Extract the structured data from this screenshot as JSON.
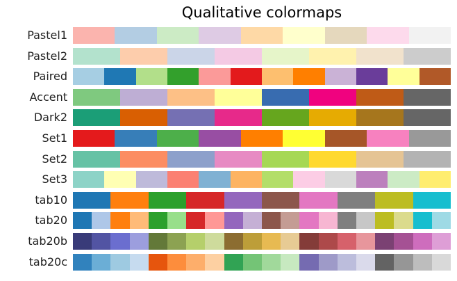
{
  "chart_data": {
    "type": "heatmap",
    "title": "Qualitative colormaps",
    "grid": false,
    "colormaps": [
      {
        "name": "Pastel1",
        "colors": [
          "#fbb4ae",
          "#b3cde3",
          "#ccebc5",
          "#decbe4",
          "#fed9a6",
          "#ffffcc",
          "#e5d8bd",
          "#fddaec",
          "#f2f2f2"
        ]
      },
      {
        "name": "Pastel2",
        "colors": [
          "#b3e2cd",
          "#fdcdac",
          "#cbd5e8",
          "#f4cae4",
          "#e6f5c9",
          "#fff2ae",
          "#f1e2cc",
          "#cccccc"
        ]
      },
      {
        "name": "Paired",
        "colors": [
          "#a6cee3",
          "#1f78b4",
          "#b2df8a",
          "#33a02c",
          "#fb9a99",
          "#e31a1c",
          "#fdbf6f",
          "#ff7f00",
          "#cab2d6",
          "#6a3d9a",
          "#ffff99",
          "#b15928"
        ]
      },
      {
        "name": "Accent",
        "colors": [
          "#7fc97f",
          "#beaed4",
          "#fdc086",
          "#ffff99",
          "#386cb0",
          "#f0027f",
          "#bf5b17",
          "#666666"
        ]
      },
      {
        "name": "Dark2",
        "colors": [
          "#1b9e77",
          "#d95f02",
          "#7570b3",
          "#e7298a",
          "#66a61e",
          "#e6ab02",
          "#a6761d",
          "#666666"
        ]
      },
      {
        "name": "Set1",
        "colors": [
          "#e41a1c",
          "#377eb8",
          "#4daf4a",
          "#984ea3",
          "#ff7f00",
          "#ffff33",
          "#a65628",
          "#f781bf",
          "#999999"
        ]
      },
      {
        "name": "Set2",
        "colors": [
          "#66c2a5",
          "#fc8d62",
          "#8da0cb",
          "#e78ac3",
          "#a6d854",
          "#ffd92f",
          "#e5c494",
          "#b3b3b3"
        ]
      },
      {
        "name": "Set3",
        "colors": [
          "#8dd3c7",
          "#ffffb3",
          "#bebada",
          "#fb8072",
          "#80b1d3",
          "#fdb462",
          "#b3de69",
          "#fccde5",
          "#d9d9d9",
          "#bc80bd",
          "#ccebc5",
          "#ffed6f"
        ]
      },
      {
        "name": "tab10",
        "colors": [
          "#1f77b4",
          "#ff7f0e",
          "#2ca02c",
          "#d62728",
          "#9467bd",
          "#8c564b",
          "#e377c2",
          "#7f7f7f",
          "#bcbd22",
          "#17becf"
        ]
      },
      {
        "name": "tab20",
        "colors": [
          "#1f77b4",
          "#aec7e8",
          "#ff7f0e",
          "#ffbb78",
          "#2ca02c",
          "#98df8a",
          "#d62728",
          "#ff9896",
          "#9467bd",
          "#c5b0d5",
          "#8c564b",
          "#c49c94",
          "#e377c2",
          "#f7b6d2",
          "#7f7f7f",
          "#c7c7c7",
          "#bcbd22",
          "#dbdb8d",
          "#17becf",
          "#9edae5"
        ]
      },
      {
        "name": "tab20b",
        "colors": [
          "#393b79",
          "#5254a3",
          "#6b6ecf",
          "#9c9ede",
          "#637939",
          "#8ca252",
          "#b5cf6b",
          "#cedb9c",
          "#8c6d31",
          "#bd9e39",
          "#e7ba52",
          "#e7cb94",
          "#843c39",
          "#ad494a",
          "#d6616b",
          "#e7969c",
          "#7b4173",
          "#a55194",
          "#ce6dbd",
          "#de9ed6"
        ]
      },
      {
        "name": "tab20c",
        "colors": [
          "#3182bd",
          "#6baed6",
          "#9ecae1",
          "#c6dbef",
          "#e6550d",
          "#fd8d3c",
          "#fdae6b",
          "#fdd0a2",
          "#31a354",
          "#74c476",
          "#a1d99b",
          "#c7e9c0",
          "#756bb1",
          "#9e9ac8",
          "#bcbddc",
          "#dadaeb",
          "#636363",
          "#969696",
          "#bdbdbd",
          "#d9d9d9"
        ]
      }
    ]
  }
}
